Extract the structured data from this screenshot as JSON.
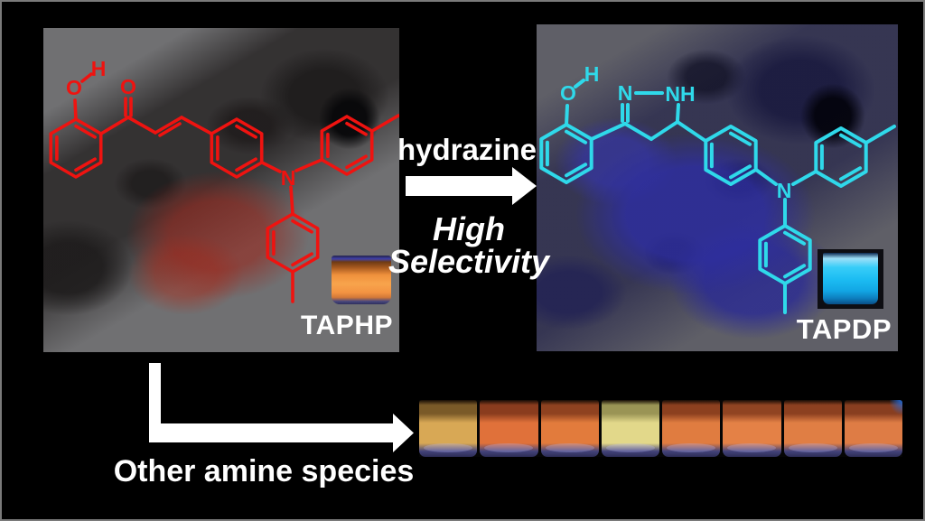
{
  "reaction": {
    "reagent_label": "hydrazine",
    "selectivity_label": "High Selectivity",
    "bottom_label": "Other amine species"
  },
  "left_panel": {
    "compound_label": "TAPHP",
    "structure_color": "#ef1310",
    "vial_liquid_color": "#f39342",
    "atom_labels": {
      "hydroxyl_o": "O",
      "hydroxyl_h": "H",
      "carbonyl_o": "O",
      "amine_n": "N"
    }
  },
  "right_panel": {
    "compound_label": "TAPDP",
    "structure_color": "#2fd9ea",
    "vial_liquid_color": "#1cbcf2",
    "atom_labels": {
      "hydroxyl_o": "O",
      "hydroxyl_h": "H",
      "imine_n": "N",
      "pyrazoline_nh": "NH",
      "amine_n": "N"
    }
  },
  "bottom_strip": {
    "vials": [
      {
        "liquid": "#d8a855",
        "shade": "#7a5a28"
      },
      {
        "liquid": "#e0713a",
        "shade": "#8a3c1e"
      },
      {
        "liquid": "#e27b3c",
        "shade": "#8f4220"
      },
      {
        "liquid": "#e2d88a",
        "shade": "#9a9455"
      },
      {
        "liquid": "#e07c40",
        "shade": "#8c401f"
      },
      {
        "liquid": "#e48146",
        "shade": "#904422"
      },
      {
        "liquid": "#e07e44",
        "shade": "#8c4020"
      },
      {
        "liquid": "#de7c45",
        "shade": "#883e20"
      }
    ]
  },
  "colors": {
    "background": "#000000",
    "frame_border": "#7a7a7a",
    "left_fluorescence": "#963c28",
    "right_fluorescence": "#2e2e9e",
    "arrow": "#ffffff"
  }
}
